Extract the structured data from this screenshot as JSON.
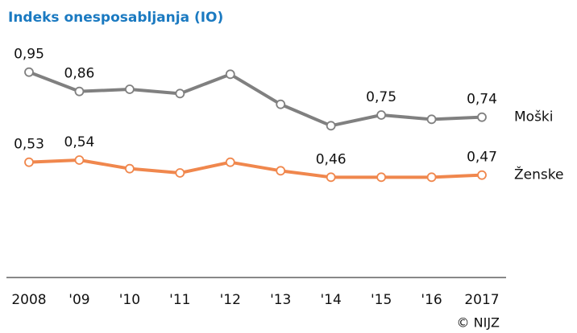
{
  "chart_data": {
    "type": "line",
    "title": "Indeks onesposabljanja (IO)",
    "source": "© NIJZ",
    "categories": [
      "2008",
      "'09",
      "'10",
      "'11",
      "'12",
      "'13",
      "'14",
      "'15",
      "'16",
      "2017"
    ],
    "series": [
      {
        "name": "Moški",
        "color": "#808080",
        "values": [
          0.95,
          0.86,
          0.87,
          0.85,
          0.94,
          0.8,
          0.7,
          0.75,
          0.73,
          0.74
        ],
        "value_labels": [
          "0,95",
          "0,86",
          null,
          null,
          null,
          null,
          null,
          "0,75",
          null,
          "0,74"
        ]
      },
      {
        "name": "Ženske",
        "color": "#f0874d",
        "values": [
          0.53,
          0.54,
          0.5,
          0.48,
          0.53,
          0.49,
          0.46,
          0.46,
          0.46,
          0.47
        ],
        "value_labels": [
          "0,53",
          "0,54",
          null,
          null,
          null,
          null,
          "0,46",
          null,
          null,
          "0,47"
        ]
      }
    ],
    "ylim": [
      0,
      1.2
    ]
  }
}
